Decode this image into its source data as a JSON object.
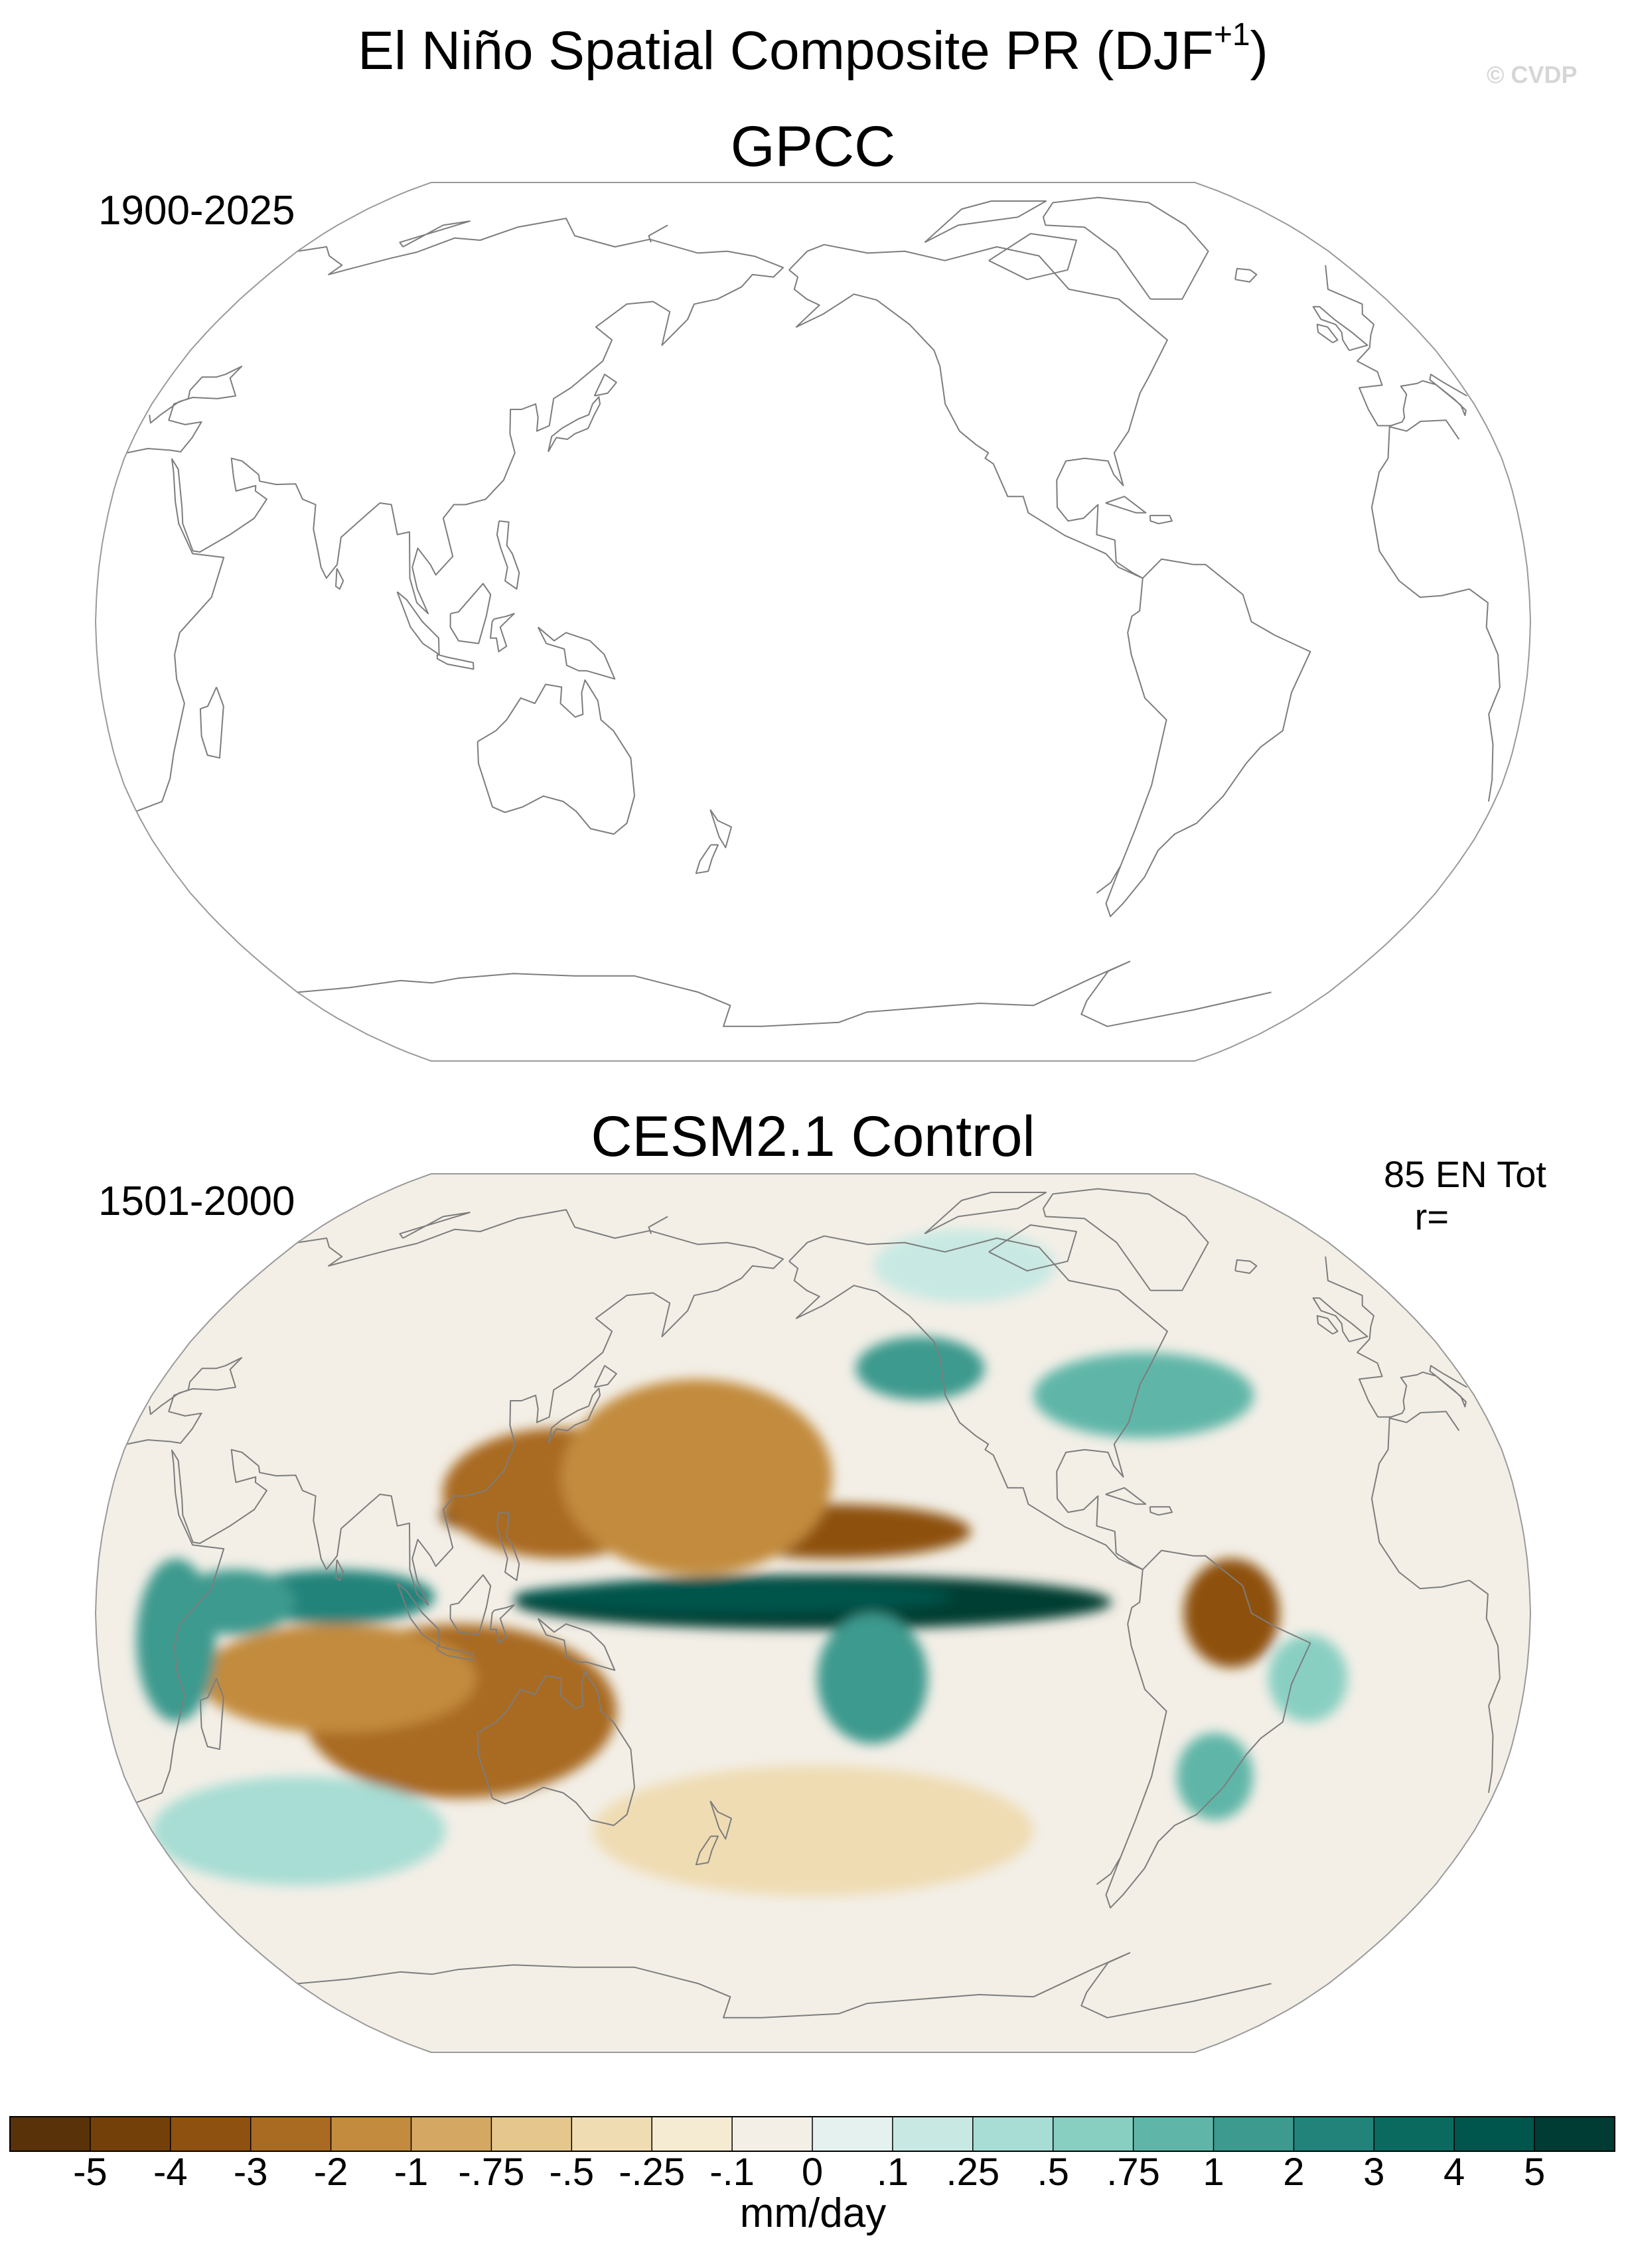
{
  "figure": {
    "title_text": "El Niño Spatial Composite PR (DJF",
    "title_sup": "+1",
    "title_close": ")",
    "copyright": "© CVDP"
  },
  "panels": [
    {
      "name": "top",
      "title": "GPCC",
      "period": "1900-2025",
      "stat": "",
      "filled": false
    },
    {
      "name": "bottom",
      "title": "CESM2.1 Control",
      "period": "1501-2000",
      "stat": "85 EN Tot\n   r=",
      "filled": true
    }
  ],
  "colorbar": {
    "unit": "mm/day",
    "colors": [
      "#5a3209",
      "#744009",
      "#8e510f",
      "#a96a22",
      "#c28b3e",
      "#d4a862",
      "#e5c78e",
      "#efdcb3",
      "#f5ebd2",
      "#f3efe7",
      "#e5f1ef",
      "#c8e9e3",
      "#a7ddd4",
      "#88cfc2",
      "#5fb6a8",
      "#3c9a8e",
      "#21837a",
      "#0b6a60",
      "#00554c",
      "#003c33"
    ],
    "labels": [
      "-5",
      "-4",
      "-3",
      "-2",
      "-1",
      "-.75",
      "-.5",
      "-.25",
      "-.1",
      "0",
      ".1",
      ".25",
      ".5",
      ".75",
      "1",
      "2",
      "3",
      "4",
      "5"
    ]
  },
  "anomalies": [
    {
      "lon": 200,
      "lat": 2,
      "rx": 75,
      "ry": 5,
      "color": "#003c33"
    },
    {
      "lon": 180,
      "lat": 3,
      "rx": 55,
      "ry": 3,
      "color": "#00554c"
    },
    {
      "lon": 80,
      "lat": 3,
      "rx": 25,
      "ry": 5,
      "color": "#21837a"
    },
    {
      "lon": 55,
      "lat": 2,
      "rx": 15,
      "ry": 6,
      "color": "#3c9a8e"
    },
    {
      "lon": 155,
      "lat": 18,
      "rx": 50,
      "ry": 6,
      "color": "#744009"
    },
    {
      "lon": 205,
      "lat": 15,
      "rx": 35,
      "ry": 5,
      "color": "#8e510f"
    },
    {
      "lon": 135,
      "lat": 22,
      "rx": 30,
      "ry": 12,
      "color": "#a96a22"
    },
    {
      "lon": 170,
      "lat": 25,
      "rx": 35,
      "ry": 18,
      "color": "#c28b3e"
    },
    {
      "lon": 110,
      "lat": -18,
      "rx": 40,
      "ry": 16,
      "color": "#a96a22"
    },
    {
      "lon": 80,
      "lat": -12,
      "rx": 35,
      "ry": 10,
      "color": "#c28b3e"
    },
    {
      "lon": 215,
      "lat": -12,
      "rx": 14,
      "ry": 12,
      "color": "#3c9a8e"
    },
    {
      "lon": 230,
      "lat": 45,
      "rx": 18,
      "ry": 6,
      "color": "#3c9a8e"
    },
    {
      "lon": 290,
      "lat": 40,
      "rx": 30,
      "ry": 8,
      "color": "#5fb6a8"
    },
    {
      "lon": 305,
      "lat": 0,
      "rx": 12,
      "ry": 10,
      "color": "#8e510f"
    },
    {
      "lon": 325,
      "lat": -12,
      "rx": 10,
      "ry": 8,
      "color": "#88cfc2"
    },
    {
      "lon": 305,
      "lat": -30,
      "rx": 10,
      "ry": 8,
      "color": "#5fb6a8"
    },
    {
      "lon": 40,
      "lat": -5,
      "rx": 10,
      "ry": 15,
      "color": "#3c9a8e"
    },
    {
      "lon": 200,
      "lat": -40,
      "rx": 60,
      "ry": 12,
      "color": "#efdcb3"
    },
    {
      "lon": 60,
      "lat": -40,
      "rx": 40,
      "ry": 10,
      "color": "#a7ddd4"
    },
    {
      "lon": 250,
      "lat": 65,
      "rx": 30,
      "ry": 8,
      "color": "#c8e9e3"
    }
  ]
}
